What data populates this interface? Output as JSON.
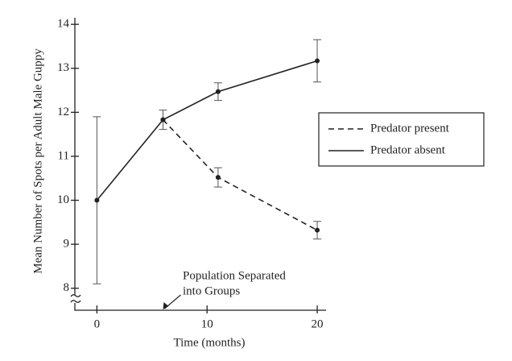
{
  "chart_data": {
    "type": "line",
    "x_label": "Time (months)",
    "y_label": "Mean Number of Spots per Adult Male Guppy",
    "x": [
      0,
      6,
      11,
      20
    ],
    "series": [
      {
        "name": "Predator present",
        "color": "#222222",
        "dash": true,
        "values": [
          null,
          11.83,
          10.52,
          9.32
        ],
        "errors": [
          null,
          null,
          0.22,
          0.2
        ]
      },
      {
        "name": "Predator absent",
        "color": "#222222",
        "dash": false,
        "values": [
          10.0,
          11.83,
          12.47,
          13.17
        ],
        "errors": [
          1.9,
          0.22,
          0.2,
          0.48
        ]
      }
    ],
    "xlim": [
      -2,
      20.8
    ],
    "ylim": [
      7.5,
      14.15
    ],
    "xticks": [
      0,
      10,
      20
    ],
    "yticks": [
      8,
      9,
      10,
      11,
      12,
      13,
      14
    ],
    "annotation": {
      "lines": [
        "Population Separated",
        "into Groups"
      ],
      "x": 6
    },
    "legend": "right"
  }
}
